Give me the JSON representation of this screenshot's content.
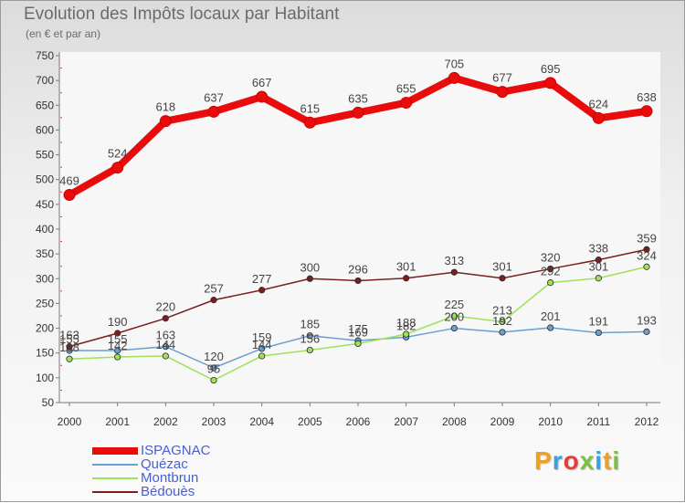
{
  "chart_data": {
    "type": "line",
    "title": "Evolution des Impôts locaux par Habitant",
    "subtitle": "(en € et par an)",
    "xlabel": "",
    "ylabel": "",
    "x": [
      2000,
      2001,
      2002,
      2003,
      2004,
      2005,
      2006,
      2007,
      2008,
      2009,
      2010,
      2011,
      2012
    ],
    "ylim": [
      50,
      750
    ],
    "yticks": [
      50,
      100,
      150,
      200,
      250,
      300,
      350,
      400,
      450,
      500,
      550,
      600,
      650,
      700,
      750
    ],
    "grid": false,
    "legend_position": "bottom-left",
    "series": [
      {
        "name": "ISPAGNAC",
        "color": "#e80c0c",
        "values": [
          469,
          524,
          618,
          637,
          667,
          615,
          635,
          655,
          705,
          677,
          695,
          624,
          638
        ]
      },
      {
        "name": "Quézac",
        "color": "#6a9fcf",
        "values": [
          155,
          155,
          163,
          120,
          159,
          185,
          175,
          182,
          200,
          192,
          201,
          191,
          193
        ]
      },
      {
        "name": "Montbrun",
        "color": "#9ee15a",
        "values": [
          138,
          142,
          144,
          95,
          144,
          156,
          169,
          188,
          225,
          213,
          292,
          301,
          324
        ]
      },
      {
        "name": "Bédouès",
        "color": "#7a1f1f",
        "values": [
          163,
          190,
          220,
          257,
          277,
          300,
          296,
          301,
          313,
          301,
          320,
          338,
          359
        ]
      }
    ]
  },
  "brand": {
    "text": "Proxiti"
  }
}
